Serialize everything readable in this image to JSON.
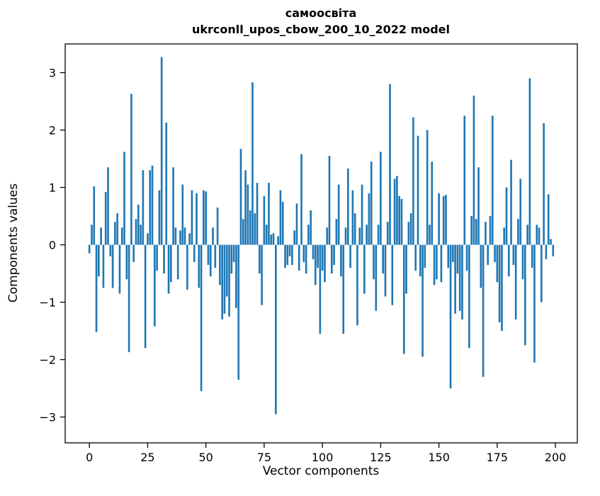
{
  "chart_data": {
    "type": "bar",
    "title": "самоосвіта",
    "subtitle": "ukrconll_upos_cbow_200_10_2022 model",
    "xlabel": "Vector components",
    "ylabel": "Components values",
    "bar_color": "#1f77b4",
    "axis_color": "#000000",
    "background": "#ffffff",
    "grid": false,
    "legend": "none",
    "xlim": [
      -10.4,
      209.4
    ],
    "ylim": [
      -3.45,
      3.5
    ],
    "x_ticks": [
      0,
      25,
      50,
      75,
      100,
      125,
      150,
      175,
      200
    ],
    "y_ticks": [
      -3,
      -2,
      -1,
      0,
      1,
      2,
      3
    ],
    "bar_width": 0.8,
    "values": [
      -0.15,
      0.35,
      1.02,
      -1.52,
      -0.55,
      0.3,
      -0.75,
      0.92,
      1.35,
      -0.2,
      -0.75,
      0.4,
      0.55,
      -0.85,
      0.3,
      1.62,
      -0.6,
      -1.87,
      2.63,
      -0.3,
      0.45,
      0.7,
      0.35,
      1.3,
      -1.8,
      0.2,
      1.3,
      1.38,
      -1.42,
      -0.45,
      0.95,
      3.27,
      -0.5,
      2.13,
      -0.85,
      -0.65,
      1.35,
      0.3,
      -0.6,
      0.25,
      1.05,
      0.3,
      -0.78,
      0.2,
      0.95,
      -0.3,
      0.9,
      -0.75,
      -2.55,
      0.95,
      0.93,
      -0.35,
      -0.55,
      0.3,
      -0.4,
      0.65,
      -0.7,
      -1.3,
      -1.2,
      -0.9,
      -1.25,
      -0.5,
      -0.3,
      -1.1,
      -2.35,
      1.67,
      0.45,
      1.3,
      1.05,
      0.6,
      2.83,
      0.55,
      1.08,
      -0.5,
      -1.05,
      0.85,
      0.35,
      1.08,
      0.18,
      0.2,
      -2.95,
      0.15,
      0.95,
      0.75,
      -0.4,
      -0.35,
      -0.2,
      -0.35,
      0.25,
      0.72,
      -0.45,
      1.58,
      -0.3,
      -0.5,
      0.35,
      0.6,
      -0.25,
      -0.7,
      -0.4,
      -1.55,
      -0.45,
      -0.65,
      0.3,
      1.55,
      -0.5,
      -0.35,
      0.45,
      1.05,
      -0.55,
      -1.55,
      0.3,
      1.33,
      -0.4,
      0.95,
      0.55,
      -1.4,
      0.3,
      1.05,
      -0.85,
      0.35,
      0.9,
      1.45,
      -0.6,
      -1.15,
      0.35,
      1.62,
      -0.5,
      -0.9,
      0.4,
      2.8,
      -1.05,
      1.15,
      1.2,
      0.85,
      0.8,
      -1.9,
      -0.85,
      0.4,
      0.55,
      2.22,
      -0.45,
      1.9,
      -0.55,
      -1.95,
      -0.4,
      2.0,
      0.35,
      1.45,
      -0.7,
      -0.6,
      0.9,
      -0.65,
      0.85,
      0.87,
      -0.4,
      -2.5,
      -0.3,
      -1.2,
      -0.5,
      -1.15,
      -1.3,
      2.25,
      -0.45,
      -1.8,
      0.5,
      2.6,
      0.45,
      1.35,
      -0.75,
      -2.3,
      0.4,
      -0.35,
      0.5,
      2.25,
      -0.3,
      -0.65,
      -1.35,
      -1.5,
      0.3,
      1.0,
      -0.55,
      1.48,
      -0.35,
      -1.3,
      0.45,
      1.15,
      -0.6,
      -1.75,
      0.35,
      2.9,
      -0.4,
      -2.05,
      0.35,
      0.3,
      -1.0,
      2.12,
      -0.25,
      0.88,
      0.1,
      -0.2
    ]
  }
}
